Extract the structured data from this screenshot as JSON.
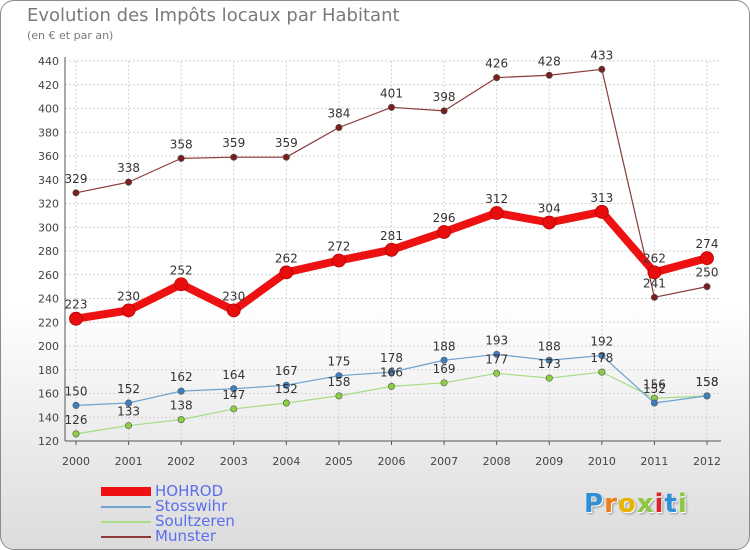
{
  "title": "Evolution des Impôts locaux par Habitant",
  "subtitle": "(en € et par an)",
  "logo": {
    "text": "Proxiti",
    "letters": [
      "P",
      "r",
      "o",
      "x",
      "i",
      "t",
      "i"
    ],
    "colors": [
      "#2f8fd6",
      "#ef7d1a",
      "#e8b400",
      "#8dc63f",
      "#d9232d",
      "#2f8fd6",
      "#8dc63f"
    ]
  },
  "chart_data": {
    "type": "line",
    "title": "Evolution des Impôts locaux par Habitant",
    "subtitle": "(en € et par an)",
    "xlabel": "",
    "ylabel": "",
    "ylim": [
      120,
      440
    ],
    "yticks": [
      120,
      140,
      160,
      180,
      200,
      220,
      240,
      260,
      280,
      300,
      320,
      340,
      360,
      380,
      400,
      420,
      440
    ],
    "categories": [
      "2000",
      "2001",
      "2002",
      "2003",
      "2004",
      "2005",
      "2006",
      "2007",
      "2008",
      "2009",
      "2010",
      "2011",
      "2012"
    ],
    "grid": true,
    "legend_position": "bottom-left",
    "series": [
      {
        "name": "Munster",
        "color": "#7a1e1e",
        "line": "#8c3a3a",
        "values": [
          329,
          338,
          358,
          359,
          359,
          384,
          401,
          398,
          426,
          428,
          433,
          241,
          250
        ]
      },
      {
        "name": "Soultzeren",
        "color": "#8ccf3f",
        "line": "#a8dc86",
        "values": [
          126,
          133,
          138,
          147,
          152,
          158,
          166,
          169,
          177,
          173,
          178,
          156,
          158
        ]
      },
      {
        "name": "Stosswihr",
        "color": "#3d7fc1",
        "line": "#6fa3d2",
        "values": [
          150,
          152,
          162,
          164,
          167,
          175,
          178,
          188,
          193,
          188,
          192,
          152,
          158
        ]
      },
      {
        "name": "HOHROD",
        "color": "#e80d0d",
        "line": "#ee1111",
        "values": [
          223,
          230,
          252,
          230,
          262,
          272,
          281,
          296,
          312,
          304,
          313,
          262,
          274
        ]
      }
    ],
    "legend": [
      "HOHROD",
      "Stosswihr",
      "Soultzeren",
      "Munster"
    ]
  }
}
